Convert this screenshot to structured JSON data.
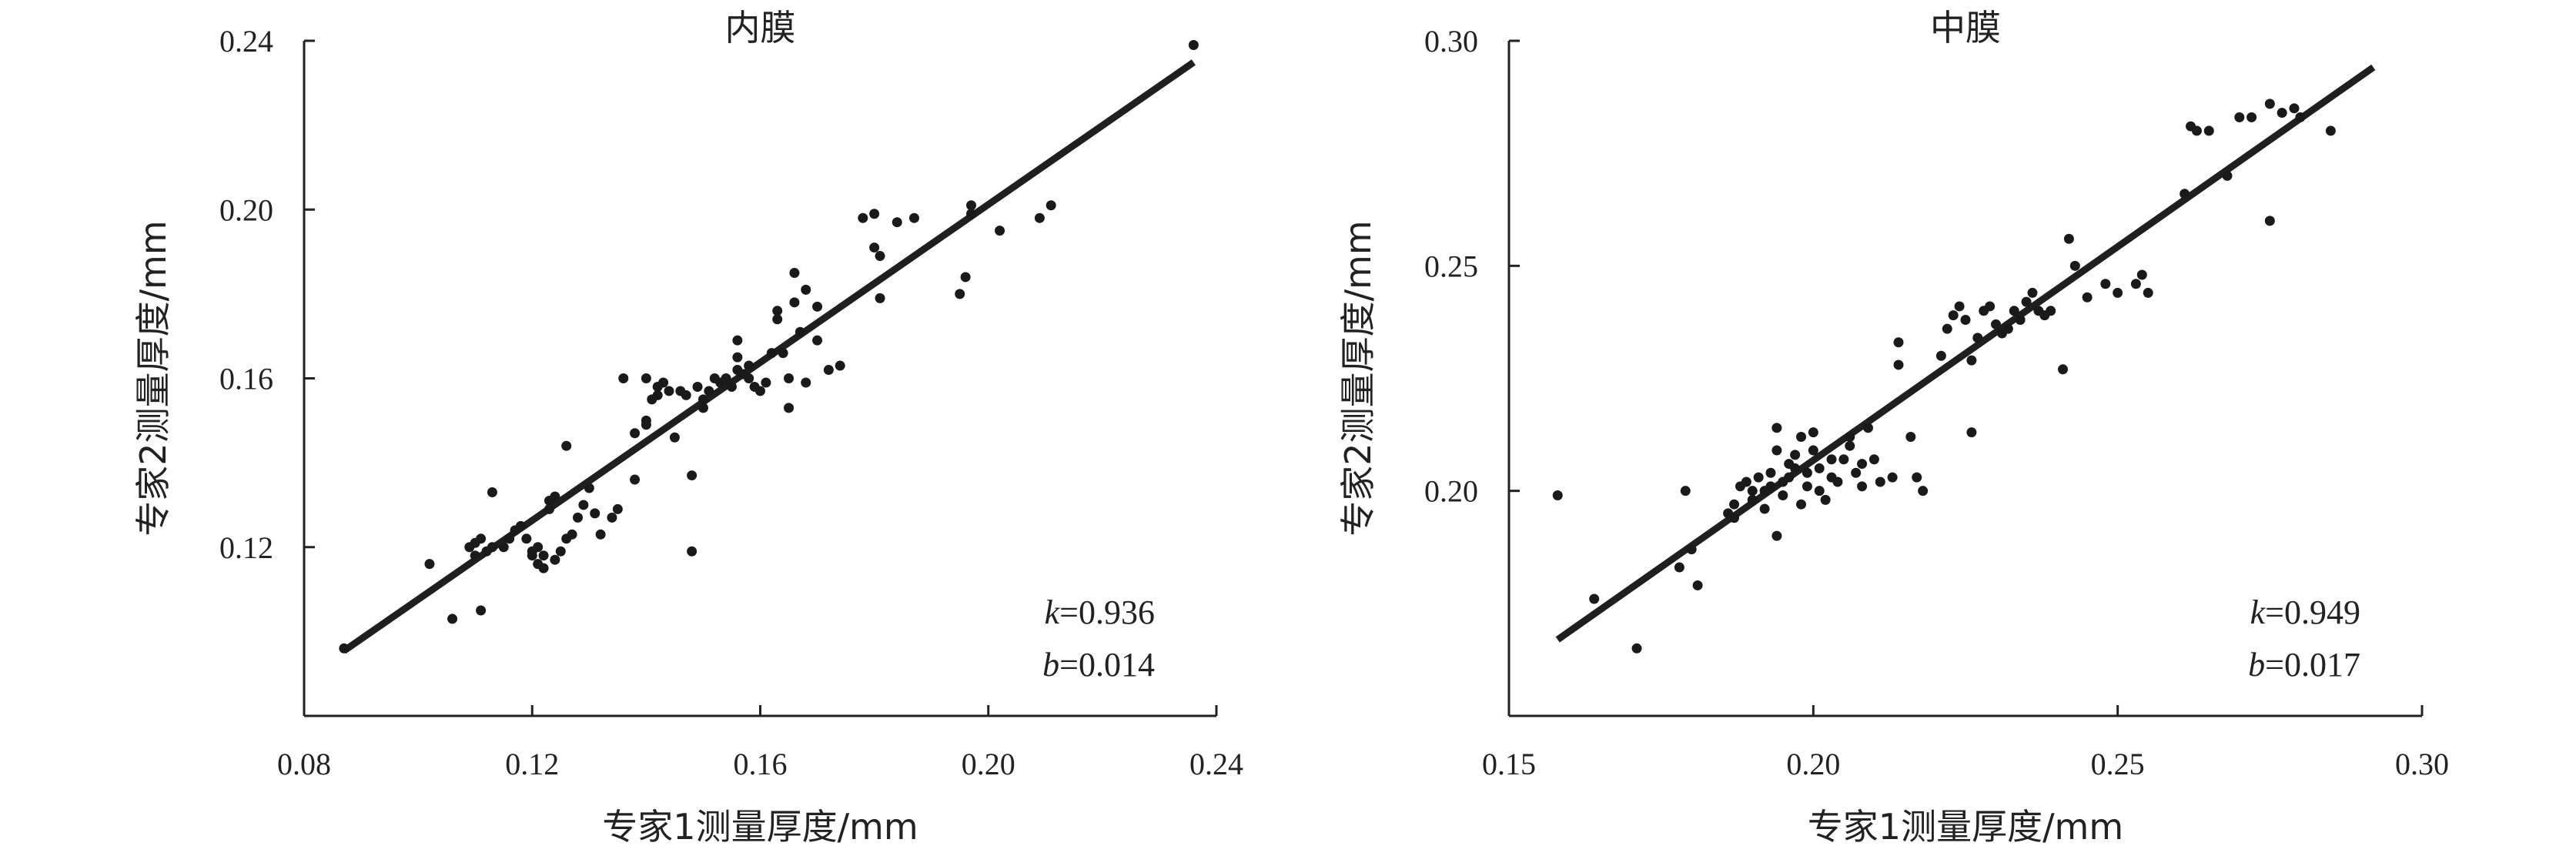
{
  "chart_data": [
    {
      "type": "scatter",
      "title": "内膜",
      "xlabel": "专家1测量厚度/mm",
      "ylabel": "专家2测量厚度/mm",
      "xlim": [
        0.08,
        0.24
      ],
      "ylim": [
        0.08,
        0.24
      ],
      "xticks": [
        "0.08",
        "0.12",
        "0.16",
        "0.20",
        "0.24"
      ],
      "yticks": [
        "0.12",
        "0.16",
        "0.20",
        "0.24"
      ],
      "annotations": [
        {
          "var": "k",
          "text": "=0.936"
        },
        {
          "var": "b",
          "text": "=0.014"
        }
      ],
      "fit_line": {
        "slope": 0.936,
        "intercept": 0.014,
        "x_range": [
          0.087,
          0.236
        ]
      },
      "points": [
        [
          0.087,
          0.096
        ],
        [
          0.102,
          0.116
        ],
        [
          0.106,
          0.103
        ],
        [
          0.109,
          0.12
        ],
        [
          0.11,
          0.121
        ],
        [
          0.11,
          0.118
        ],
        [
          0.111,
          0.105
        ],
        [
          0.111,
          0.122
        ],
        [
          0.112,
          0.119
        ],
        [
          0.113,
          0.133
        ],
        [
          0.113,
          0.12
        ],
        [
          0.115,
          0.12
        ],
        [
          0.116,
          0.122
        ],
        [
          0.117,
          0.124
        ],
        [
          0.118,
          0.125
        ],
        [
          0.119,
          0.122
        ],
        [
          0.12,
          0.119
        ],
        [
          0.12,
          0.118
        ],
        [
          0.121,
          0.12
        ],
        [
          0.121,
          0.116
        ],
        [
          0.122,
          0.118
        ],
        [
          0.122,
          0.115
        ],
        [
          0.123,
          0.129
        ],
        [
          0.123,
          0.131
        ],
        [
          0.124,
          0.132
        ],
        [
          0.124,
          0.117
        ],
        [
          0.125,
          0.119
        ],
        [
          0.126,
          0.144
        ],
        [
          0.126,
          0.122
        ],
        [
          0.127,
          0.123
        ],
        [
          0.128,
          0.127
        ],
        [
          0.129,
          0.13
        ],
        [
          0.13,
          0.134
        ],
        [
          0.131,
          0.128
        ],
        [
          0.132,
          0.123
        ],
        [
          0.134,
          0.127
        ],
        [
          0.135,
          0.129
        ],
        [
          0.136,
          0.16
        ],
        [
          0.138,
          0.136
        ],
        [
          0.138,
          0.147
        ],
        [
          0.14,
          0.149
        ],
        [
          0.14,
          0.15
        ],
        [
          0.14,
          0.16
        ],
        [
          0.141,
          0.155
        ],
        [
          0.142,
          0.156
        ],
        [
          0.142,
          0.158
        ],
        [
          0.143,
          0.159
        ],
        [
          0.144,
          0.157
        ],
        [
          0.145,
          0.146
        ],
        [
          0.146,
          0.157
        ],
        [
          0.147,
          0.156
        ],
        [
          0.148,
          0.137
        ],
        [
          0.148,
          0.119
        ],
        [
          0.149,
          0.158
        ],
        [
          0.15,
          0.155
        ],
        [
          0.15,
          0.153
        ],
        [
          0.151,
          0.157
        ],
        [
          0.152,
          0.16
        ],
        [
          0.153,
          0.159
        ],
        [
          0.154,
          0.16
        ],
        [
          0.155,
          0.158
        ],
        [
          0.156,
          0.162
        ],
        [
          0.156,
          0.165
        ],
        [
          0.156,
          0.169
        ],
        [
          0.157,
          0.161
        ],
        [
          0.158,
          0.163
        ],
        [
          0.158,
          0.16
        ],
        [
          0.159,
          0.158
        ],
        [
          0.16,
          0.157
        ],
        [
          0.161,
          0.159
        ],
        [
          0.162,
          0.166
        ],
        [
          0.163,
          0.176
        ],
        [
          0.163,
          0.174
        ],
        [
          0.164,
          0.166
        ],
        [
          0.165,
          0.153
        ],
        [
          0.165,
          0.16
        ],
        [
          0.166,
          0.178
        ],
        [
          0.166,
          0.185
        ],
        [
          0.167,
          0.171
        ],
        [
          0.168,
          0.181
        ],
        [
          0.168,
          0.159
        ],
        [
          0.17,
          0.169
        ],
        [
          0.17,
          0.177
        ],
        [
          0.172,
          0.162
        ],
        [
          0.174,
          0.163
        ],
        [
          0.178,
          0.198
        ],
        [
          0.18,
          0.199
        ],
        [
          0.18,
          0.191
        ],
        [
          0.181,
          0.189
        ],
        [
          0.181,
          0.179
        ],
        [
          0.184,
          0.197
        ],
        [
          0.187,
          0.198
        ],
        [
          0.195,
          0.18
        ],
        [
          0.196,
          0.184
        ],
        [
          0.197,
          0.201
        ],
        [
          0.197,
          0.199
        ],
        [
          0.202,
          0.195
        ],
        [
          0.209,
          0.198
        ],
        [
          0.211,
          0.201
        ],
        [
          0.236,
          0.239
        ]
      ]
    },
    {
      "type": "scatter",
      "title": "中膜",
      "xlabel": "专家1测量厚度/mm",
      "ylabel": "专家2测量厚度/mm",
      "xlim": [
        0.15,
        0.3
      ],
      "ylim": [
        0.15,
        0.3
      ],
      "xticks": [
        "0.15",
        "0.20",
        "0.25",
        "0.30"
      ],
      "yticks": [
        "0.20",
        "0.25",
        "0.30"
      ],
      "annotations": [
        {
          "var": "k",
          "text": "=0.949"
        },
        {
          "var": "b",
          "text": "=0.017"
        }
      ],
      "fit_line": {
        "slope": 0.949,
        "intercept": 0.017,
        "x_range": [
          0.158,
          0.292
        ]
      },
      "points": [
        [
          0.158,
          0.199
        ],
        [
          0.164,
          0.176
        ],
        [
          0.171,
          0.165
        ],
        [
          0.178,
          0.183
        ],
        [
          0.179,
          0.2
        ],
        [
          0.18,
          0.187
        ],
        [
          0.181,
          0.179
        ],
        [
          0.186,
          0.195
        ],
        [
          0.187,
          0.194
        ],
        [
          0.187,
          0.197
        ],
        [
          0.188,
          0.201
        ],
        [
          0.189,
          0.202
        ],
        [
          0.19,
          0.2
        ],
        [
          0.19,
          0.198
        ],
        [
          0.191,
          0.203
        ],
        [
          0.192,
          0.2
        ],
        [
          0.192,
          0.196
        ],
        [
          0.193,
          0.201
        ],
        [
          0.193,
          0.204
        ],
        [
          0.194,
          0.209
        ],
        [
          0.194,
          0.214
        ],
        [
          0.194,
          0.19
        ],
        [
          0.195,
          0.199
        ],
        [
          0.195,
          0.202
        ],
        [
          0.196,
          0.203
        ],
        [
          0.196,
          0.206
        ],
        [
          0.197,
          0.205
        ],
        [
          0.197,
          0.208
        ],
        [
          0.198,
          0.212
        ],
        [
          0.198,
          0.197
        ],
        [
          0.199,
          0.201
        ],
        [
          0.199,
          0.204
        ],
        [
          0.2,
          0.209
        ],
        [
          0.2,
          0.213
        ],
        [
          0.201,
          0.205
        ],
        [
          0.201,
          0.2
        ],
        [
          0.202,
          0.198
        ],
        [
          0.203,
          0.207
        ],
        [
          0.203,
          0.203
        ],
        [
          0.204,
          0.202
        ],
        [
          0.205,
          0.207
        ],
        [
          0.206,
          0.21
        ],
        [
          0.206,
          0.212
        ],
        [
          0.207,
          0.204
        ],
        [
          0.208,
          0.201
        ],
        [
          0.208,
          0.206
        ],
        [
          0.209,
          0.214
        ],
        [
          0.21,
          0.207
        ],
        [
          0.211,
          0.202
        ],
        [
          0.213,
          0.203
        ],
        [
          0.214,
          0.233
        ],
        [
          0.214,
          0.228
        ],
        [
          0.216,
          0.212
        ],
        [
          0.217,
          0.203
        ],
        [
          0.218,
          0.2
        ],
        [
          0.221,
          0.23
        ],
        [
          0.222,
          0.236
        ],
        [
          0.223,
          0.239
        ],
        [
          0.224,
          0.241
        ],
        [
          0.225,
          0.238
        ],
        [
          0.226,
          0.213
        ],
        [
          0.226,
          0.229
        ],
        [
          0.227,
          0.234
        ],
        [
          0.228,
          0.24
        ],
        [
          0.229,
          0.241
        ],
        [
          0.23,
          0.237
        ],
        [
          0.231,
          0.235
        ],
        [
          0.232,
          0.236
        ],
        [
          0.233,
          0.24
        ],
        [
          0.234,
          0.238
        ],
        [
          0.235,
          0.242
        ],
        [
          0.236,
          0.244
        ],
        [
          0.237,
          0.24
        ],
        [
          0.238,
          0.239
        ],
        [
          0.239,
          0.24
        ],
        [
          0.241,
          0.227
        ],
        [
          0.242,
          0.256
        ],
        [
          0.243,
          0.25
        ],
        [
          0.245,
          0.243
        ],
        [
          0.248,
          0.246
        ],
        [
          0.25,
          0.244
        ],
        [
          0.253,
          0.246
        ],
        [
          0.254,
          0.248
        ],
        [
          0.255,
          0.244
        ],
        [
          0.261,
          0.266
        ],
        [
          0.262,
          0.281
        ],
        [
          0.263,
          0.28
        ],
        [
          0.265,
          0.28
        ],
        [
          0.268,
          0.27
        ],
        [
          0.27,
          0.283
        ],
        [
          0.272,
          0.283
        ],
        [
          0.275,
          0.286
        ],
        [
          0.275,
          0.26
        ],
        [
          0.277,
          0.284
        ],
        [
          0.279,
          0.285
        ],
        [
          0.28,
          0.283
        ],
        [
          0.285,
          0.28
        ]
      ]
    }
  ]
}
